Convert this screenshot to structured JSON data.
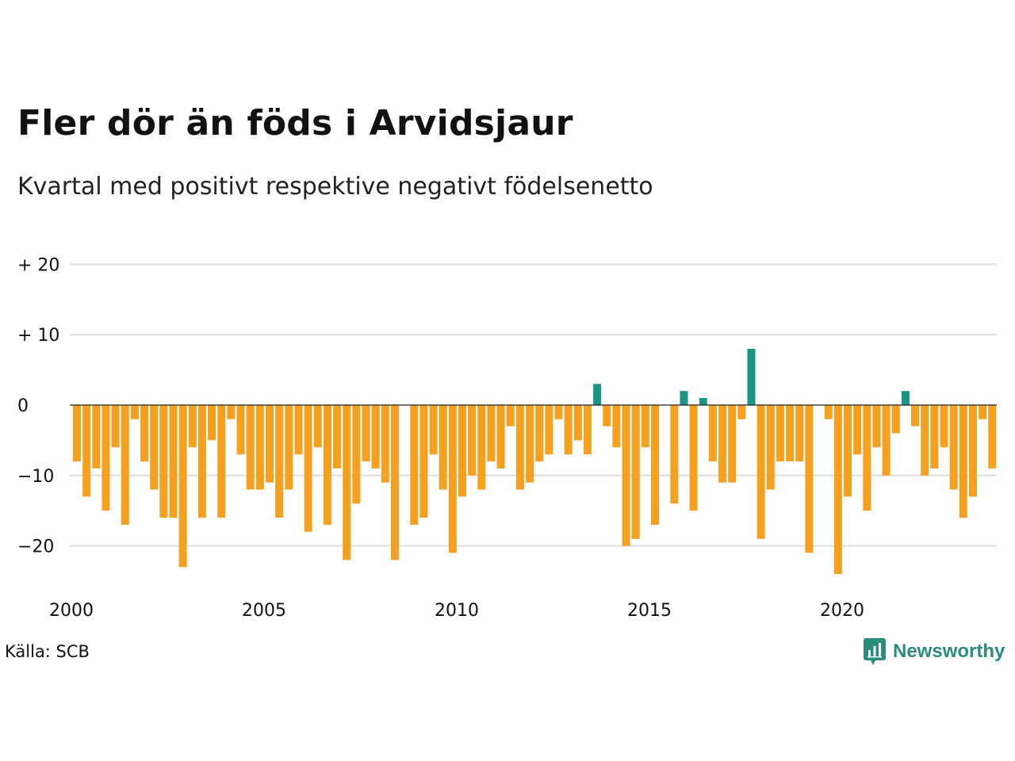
{
  "header": {
    "title": "Fler dör än föds i Arvidsjaur",
    "subtitle": "Kvartal med positivt respektive negativt födelsenetto"
  },
  "footer": {
    "source": "Källa: SCB",
    "brand": "Newsworthy",
    "brand_icon": "newsworthy-logo-icon"
  },
  "colors": {
    "negative": "#f5a11f",
    "positive": "#1a9485",
    "grid": "#dddddd",
    "zero_line": "#222222"
  },
  "chart_data": {
    "type": "bar",
    "title": "Fler dör än föds i Arvidsjaur",
    "subtitle": "Kvartal med positivt respektive negativt födelsenetto",
    "x_start": "2000 Q1",
    "x_end": "2024 Q1",
    "x_ticks": [
      "2000",
      "2005",
      "2010",
      "2015",
      "2020"
    ],
    "y_ticks": [
      {
        "value": 20,
        "label": "+ 20"
      },
      {
        "value": 10,
        "label": "+ 10"
      },
      {
        "value": 0,
        "label": "0"
      },
      {
        "value": -10,
        "label": "−10"
      },
      {
        "value": -20,
        "label": "−20"
      }
    ],
    "ylim": [
      -25,
      20
    ],
    "grid": true,
    "values": [
      -8,
      -13,
      -9,
      -15,
      -6,
      -17,
      -2,
      -8,
      -12,
      -16,
      -16,
      -23,
      -6,
      -16,
      -5,
      -16,
      -2,
      -7,
      -12,
      -12,
      -11,
      -16,
      -12,
      -7,
      -18,
      -6,
      -17,
      -9,
      -22,
      -14,
      -8,
      -9,
      -11,
      -22,
      0,
      -17,
      -16,
      -7,
      -12,
      -21,
      -13,
      -10,
      -12,
      -8,
      -9,
      -3,
      -12,
      -11,
      -8,
      -7,
      -2,
      -7,
      -5,
      -7,
      3,
      -3,
      -6,
      -20,
      -19,
      -6,
      -17,
      0,
      -14,
      2,
      -15,
      1,
      -8,
      -11,
      -11,
      -2,
      8,
      -19,
      -12,
      -8,
      -8,
      -8,
      -21,
      0,
      -2,
      -24,
      -13,
      -7,
      -15,
      -6,
      -10,
      -4,
      2,
      -3,
      -10,
      -9,
      -6,
      -12,
      -16,
      -13,
      -2,
      -9
    ]
  }
}
